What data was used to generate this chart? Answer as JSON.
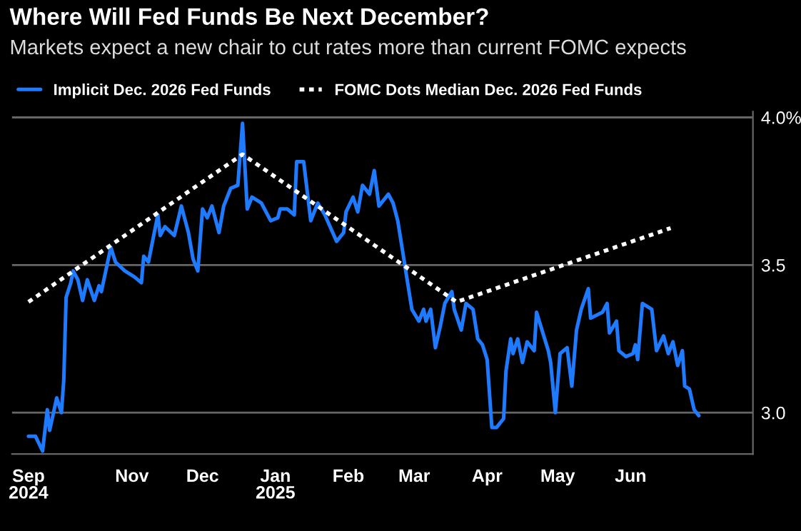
{
  "chart_data": {
    "type": "line",
    "title": "Where Will Fed Funds Be Next December?",
    "subtitle": "Markets expect a new chair to cut rates more than current FOMC expects",
    "series": [
      {
        "name": "Implicit Dec. 2026 Fed Funds",
        "color": "#1e7bff",
        "line_style": "solid",
        "x": [
          "2024-09-18",
          "2024-09-21",
          "2024-09-24",
          "2024-09-26",
          "2024-09-27",
          "2024-09-30",
          "2024-10-02",
          "2024-10-03",
          "2024-10-04",
          "2024-10-06",
          "2024-10-07",
          "2024-10-09",
          "2024-10-11",
          "2024-10-13",
          "2024-10-16",
          "2024-10-18",
          "2024-10-19",
          "2024-10-23",
          "2024-10-25",
          "2024-10-29",
          "2024-11-02",
          "2024-11-05",
          "2024-11-06",
          "2024-11-08",
          "2024-11-12",
          "2024-11-13",
          "2024-11-15",
          "2024-11-19",
          "2024-11-22",
          "2024-11-25",
          "2024-11-27",
          "2024-11-29",
          "2024-12-01",
          "2024-12-03",
          "2024-12-05",
          "2024-12-08",
          "2024-12-10",
          "2024-12-13",
          "2024-12-16",
          "2024-12-18",
          "2024-12-20",
          "2024-12-22",
          "2024-12-26",
          "2024-12-30",
          "2025-01-02",
          "2025-01-03",
          "2025-01-06",
          "2025-01-09",
          "2025-01-10",
          "2025-01-13",
          "2025-01-16",
          "2025-01-19",
          "2025-01-22",
          "2025-01-27",
          "2025-01-30",
          "2025-01-31",
          "2025-02-03",
          "2025-02-05",
          "2025-02-07",
          "2025-02-10",
          "2025-02-12",
          "2025-02-14",
          "2025-02-18",
          "2025-02-20",
          "2025-02-22",
          "2025-02-23",
          "2025-02-24",
          "2025-02-26",
          "2025-02-28",
          "2025-03-03",
          "2025-03-05",
          "2025-03-06",
          "2025-03-08",
          "2025-03-10",
          "2025-03-12",
          "2025-03-14",
          "2025-03-17",
          "2025-03-18",
          "2025-03-21",
          "2025-03-23",
          "2025-03-26",
          "2025-03-28",
          "2025-03-30",
          "2025-04-01",
          "2025-04-03",
          "2025-04-05",
          "2025-04-08",
          "2025-04-09",
          "2025-04-11",
          "2025-04-12",
          "2025-04-14",
          "2025-04-16",
          "2025-04-18",
          "2025-04-21",
          "2025-04-22",
          "2025-04-27",
          "2025-04-28",
          "2025-04-30",
          "2025-05-02",
          "2025-05-05",
          "2025-05-07",
          "2025-05-09",
          "2025-05-11",
          "2025-05-14",
          "2025-05-15",
          "2025-05-20",
          "2025-05-22",
          "2025-05-23",
          "2025-05-26",
          "2025-05-27",
          "2025-05-30",
          "2025-06-02",
          "2025-06-03",
          "2025-06-04",
          "2025-06-06",
          "2025-06-10",
          "2025-06-12",
          "2025-06-15",
          "2025-06-17",
          "2025-06-19",
          "2025-06-21",
          "2025-06-23",
          "2025-06-24",
          "2025-06-26",
          "2025-06-28",
          "2025-06-30"
        ],
        "values": [
          2.92,
          2.92,
          2.87,
          3.01,
          2.94,
          3.05,
          3.0,
          3.11,
          3.39,
          3.44,
          3.48,
          3.45,
          3.38,
          3.45,
          3.38,
          3.43,
          3.41,
          3.56,
          3.51,
          3.48,
          3.46,
          3.44,
          3.53,
          3.51,
          3.67,
          3.6,
          3.63,
          3.6,
          3.7,
          3.61,
          3.52,
          3.48,
          3.69,
          3.66,
          3.7,
          3.61,
          3.7,
          3.76,
          3.77,
          3.98,
          3.69,
          3.73,
          3.71,
          3.65,
          3.66,
          3.69,
          3.69,
          3.67,
          3.85,
          3.85,
          3.65,
          3.71,
          3.67,
          3.58,
          3.61,
          3.68,
          3.73,
          3.68,
          3.77,
          3.74,
          3.82,
          3.7,
          3.74,
          3.71,
          3.65,
          3.6,
          3.55,
          3.45,
          3.35,
          3.31,
          3.35,
          3.31,
          3.35,
          3.22,
          3.29,
          3.37,
          3.41,
          3.35,
          3.28,
          3.37,
          3.35,
          3.25,
          3.23,
          3.18,
          2.95,
          2.95,
          2.98,
          3.14,
          3.25,
          3.2,
          3.25,
          3.17,
          3.24,
          3.21,
          3.34,
          3.21,
          3.17,
          3.0,
          3.2,
          3.22,
          3.09,
          3.28,
          3.35,
          3.42,
          3.32,
          3.34,
          3.37,
          3.27,
          3.31,
          3.21,
          3.19,
          3.2,
          3.23,
          3.18,
          3.37,
          3.35,
          3.21,
          3.26,
          3.2,
          3.24,
          3.16,
          3.21,
          3.09,
          3.08,
          3.01,
          2.99
        ]
      },
      {
        "name": "FOMC Dots Median Dec. 2026 Fed Funds",
        "color": "#ffffff",
        "line_style": "dotted",
        "x": [
          "2024-09-18",
          "2024-12-18",
          "2025-03-19",
          "2025-06-18"
        ],
        "values": [
          3.375,
          3.875,
          3.375,
          3.625
        ]
      }
    ],
    "xlim": [
      "2024-09-11",
      "2025-07-23"
    ],
    "xticks": [
      {
        "value": "2024-09-18",
        "label": "Sep\n2024"
      },
      {
        "value": "2024-11-01",
        "label": "Nov"
      },
      {
        "value": "2024-12-01",
        "label": "Dec"
      },
      {
        "value": "2025-01-01",
        "label": "Jan\n2025"
      },
      {
        "value": "2025-02-01",
        "label": "Feb"
      },
      {
        "value": "2025-03-01",
        "label": "Mar"
      },
      {
        "value": "2025-04-01",
        "label": "Apr"
      },
      {
        "value": "2025-05-01",
        "label": "May"
      },
      {
        "value": "2025-06-01",
        "label": "Jun"
      }
    ],
    "ylim": [
      2.86,
      4.02
    ],
    "yticks": [
      {
        "value": 3.0,
        "label": "3.0"
      },
      {
        "value": 3.5,
        "label": "3.5"
      },
      {
        "value": 4.0,
        "label": "4.0%"
      }
    ],
    "grid": "y",
    "legend": "top left"
  }
}
